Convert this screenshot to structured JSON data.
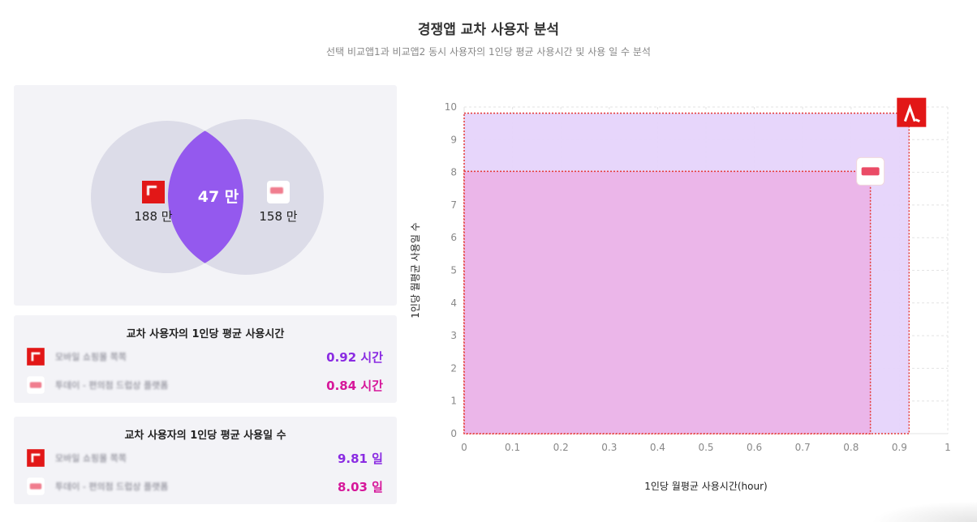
{
  "header": {
    "title": "경쟁앱 교차 사용자 분석",
    "subtitle": "선택 비교앱1과 비교앱2 동시 사용자의 1인당 평균 사용시간 및 사용 일 수 분석"
  },
  "venn": {
    "app1_users": "188 만",
    "app2_users": "158 만",
    "overlap_users": "47 만",
    "colors": {
      "circle": "#dcdce8",
      "overlap": "#9459ee"
    }
  },
  "time_card": {
    "title": "교차 사용자의 1인당 평균 사용시간",
    "rows": [
      {
        "app_name": "모바일 쇼핑몰 쪽쪽",
        "value": "0.92 시간",
        "logo": "app1-logo-icon"
      },
      {
        "app_name": "투데이 - 편의점 드럽상 플랫폼",
        "value": "0.84 시간",
        "logo": "app2-logo-icon"
      }
    ]
  },
  "days_card": {
    "title": "교차 사용자의 1인당 평균 사용일 수",
    "rows": [
      {
        "app_name": "모바일 쇼핑몰 쪽쪽",
        "value": "9.81 일",
        "logo": "app1-logo-icon"
      },
      {
        "app_name": "투데이 - 편의점 드럽상 플랫폼",
        "value": "8.03 일",
        "logo": "app2-logo-icon"
      }
    ]
  },
  "chart_data": {
    "type": "area",
    "title": "",
    "xlabel": "1인당 월평균 사용시간(hour)",
    "ylabel": "1인당 월평균 사용일 수",
    "xlim": [
      0,
      1
    ],
    "ylim": [
      0,
      10
    ],
    "xticks": [
      "0",
      "0.1",
      "0.2",
      "0.3",
      "0.4",
      "0.5",
      "0.6",
      "0.7",
      "0.8",
      "0.9",
      "1"
    ],
    "yticks": [
      "0",
      "1",
      "2",
      "3",
      "4",
      "5",
      "6",
      "7",
      "8",
      "9",
      "10"
    ],
    "series": [
      {
        "name": "app1",
        "x": 0.92,
        "y": 9.81,
        "fill": "#e6d4fb",
        "stroke": "#e53935"
      },
      {
        "name": "app2",
        "x": 0.84,
        "y": 8.03,
        "fill": "#ebb4e8",
        "stroke": "#e53935"
      }
    ]
  }
}
